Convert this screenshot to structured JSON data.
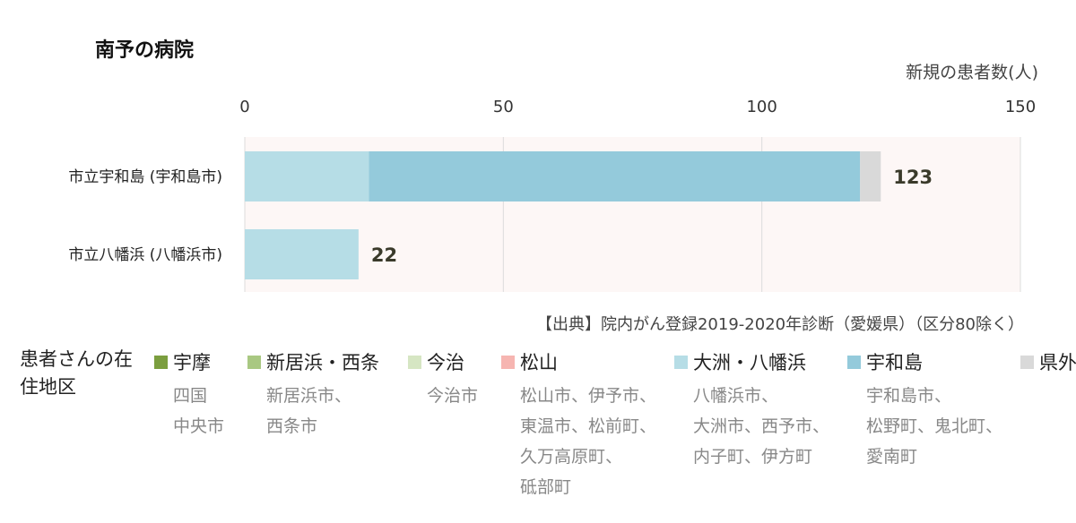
{
  "chart_data": {
    "type": "bar",
    "orientation": "horizontal",
    "stacked": true,
    "title": "南予の病院",
    "xlabel": "新規の患者数(人)",
    "xlim": [
      0,
      150
    ],
    "x_ticks": [
      "0",
      "50",
      "100",
      "150"
    ],
    "grid": true,
    "categories": [
      "市立宇和島 (宇和島市)",
      "市立八幡浜 (八幡浜市)"
    ],
    "totals": [
      "123",
      "22"
    ],
    "series": [
      {
        "name": "宇摩",
        "color": "#7b9e3f",
        "values": [
          0,
          0
        ]
      },
      {
        "name": "新居浜・西条",
        "color": "#a9c882",
        "values": [
          0,
          0
        ]
      },
      {
        "name": "今治",
        "color": "#d6e6c3",
        "values": [
          0,
          0
        ]
      },
      {
        "name": "松山",
        "color": "#f6b5b1",
        "values": [
          0,
          0
        ]
      },
      {
        "name": "大洲・八幡浜",
        "color": "#b6dde6",
        "values": [
          24,
          22
        ]
      },
      {
        "name": "宇和島",
        "color": "#94cadb",
        "values": [
          95,
          0
        ]
      },
      {
        "name": "県外",
        "color": "#d9d9d9",
        "values": [
          4,
          0
        ]
      }
    ]
  },
  "source_note": "【出典】院内がん登録2019-2020年診断（愛媛県）（区分80除く）",
  "legend": {
    "heading": "患者さんの在住地区",
    "items": [
      {
        "label": "宇摩",
        "color": "#7b9e3f",
        "towns": [
          "四国",
          "中央市"
        ]
      },
      {
        "label": "新居浜・西条",
        "color": "#a9c882",
        "towns": [
          "新居浜市、",
          "西条市"
        ]
      },
      {
        "label": "今治",
        "color": "#d6e6c3",
        "towns": [
          "今治市"
        ]
      },
      {
        "label": "松山",
        "color": "#f6b5b1",
        "towns": [
          "松山市、伊予市、",
          "東温市、松前町、",
          "久万高原町、",
          "砥部町"
        ]
      },
      {
        "label": "大洲・八幡浜",
        "color": "#b6dde6",
        "towns": [
          "八幡浜市、",
          "大洲市、西予市、",
          "内子町、伊方町"
        ]
      },
      {
        "label": "宇和島",
        "color": "#94cadb",
        "towns": [
          "宇和島市、",
          "松野町、鬼北町、",
          "愛南町"
        ]
      },
      {
        "label": "県外",
        "color": "#d9d9d9",
        "towns": []
      }
    ]
  }
}
